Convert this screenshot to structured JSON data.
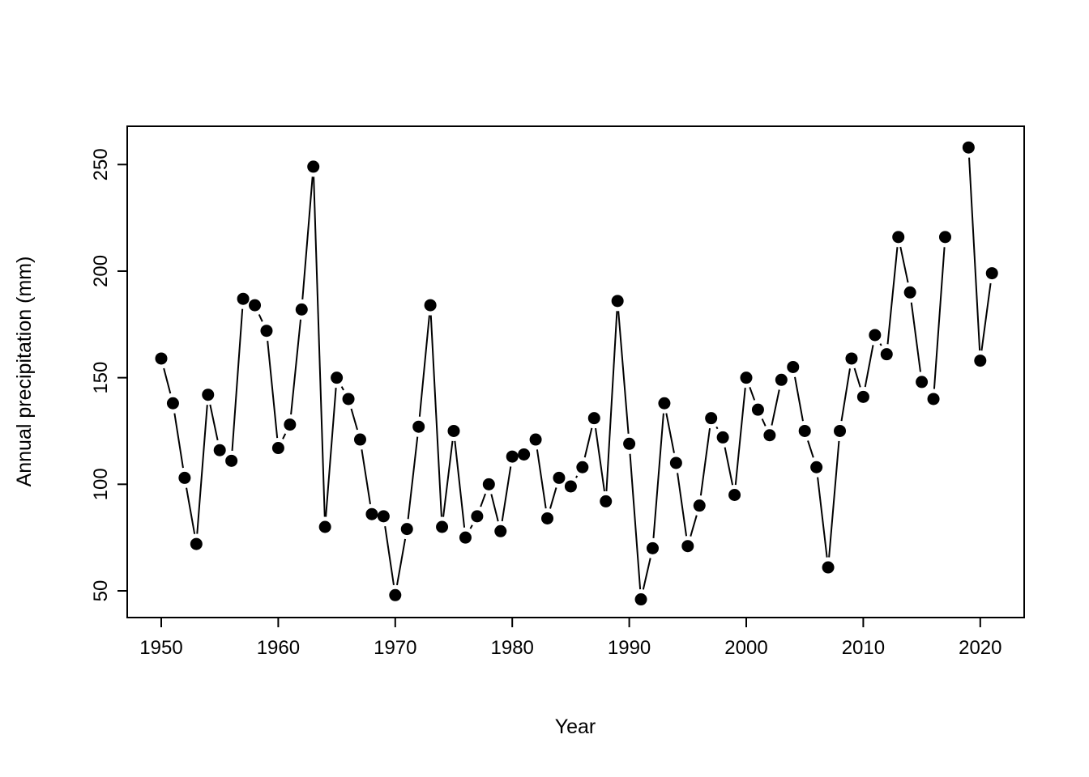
{
  "chart_data": {
    "type": "line",
    "style": "points-with-segments (R base plot type='b', filled circle markers, black on white)",
    "title": "",
    "xlabel": "Year",
    "ylabel": "Annual precipitation (mm)",
    "x": [
      1950,
      1951,
      1952,
      1953,
      1954,
      1955,
      1956,
      1957,
      1958,
      1959,
      1960,
      1961,
      1962,
      1963,
      1964,
      1965,
      1966,
      1967,
      1968,
      1969,
      1970,
      1971,
      1972,
      1973,
      1974,
      1975,
      1976,
      1977,
      1978,
      1979,
      1980,
      1981,
      1982,
      1983,
      1984,
      1985,
      1986,
      1987,
      1988,
      1989,
      1990,
      1991,
      1992,
      1993,
      1994,
      1995,
      1996,
      1997,
      1998,
      1999,
      2000,
      2001,
      2002,
      2003,
      2004,
      2005,
      2006,
      2007,
      2008,
      2009,
      2010,
      2011,
      2012,
      2013,
      2014,
      2015,
      2016,
      2017,
      2018,
      2019,
      2020,
      2021
    ],
    "values": [
      159,
      138,
      103,
      72,
      142,
      116,
      111,
      187,
      184,
      172,
      117,
      128,
      182,
      249,
      80,
      150,
      140,
      121,
      86,
      85,
      48,
      79,
      127,
      184,
      80,
      125,
      75,
      85,
      100,
      78,
      113,
      114,
      121,
      84,
      103,
      99,
      108,
      131,
      92,
      186,
      119,
      46,
      70,
      138,
      110,
      71,
      90,
      131,
      122,
      95,
      150,
      135,
      123,
      149,
      155,
      125,
      108,
      61,
      125,
      159,
      141,
      170,
      161,
      216,
      190,
      148,
      140,
      216,
      null,
      258,
      158,
      199
    ],
    "missing_years": [
      2018
    ],
    "x_ticks": [
      1950,
      1960,
      1970,
      1980,
      1990,
      2000,
      2010,
      2020
    ],
    "y_ticks": [
      50,
      100,
      150,
      200,
      250
    ],
    "xlim": [
      1947.1,
      2023.9
    ],
    "ylim": [
      37,
      270
    ],
    "grid": "off",
    "legend": "none",
    "marker": "filled-circle",
    "series_color": "#000000",
    "background_color": "#ffffff",
    "axis_color": "#000000"
  }
}
